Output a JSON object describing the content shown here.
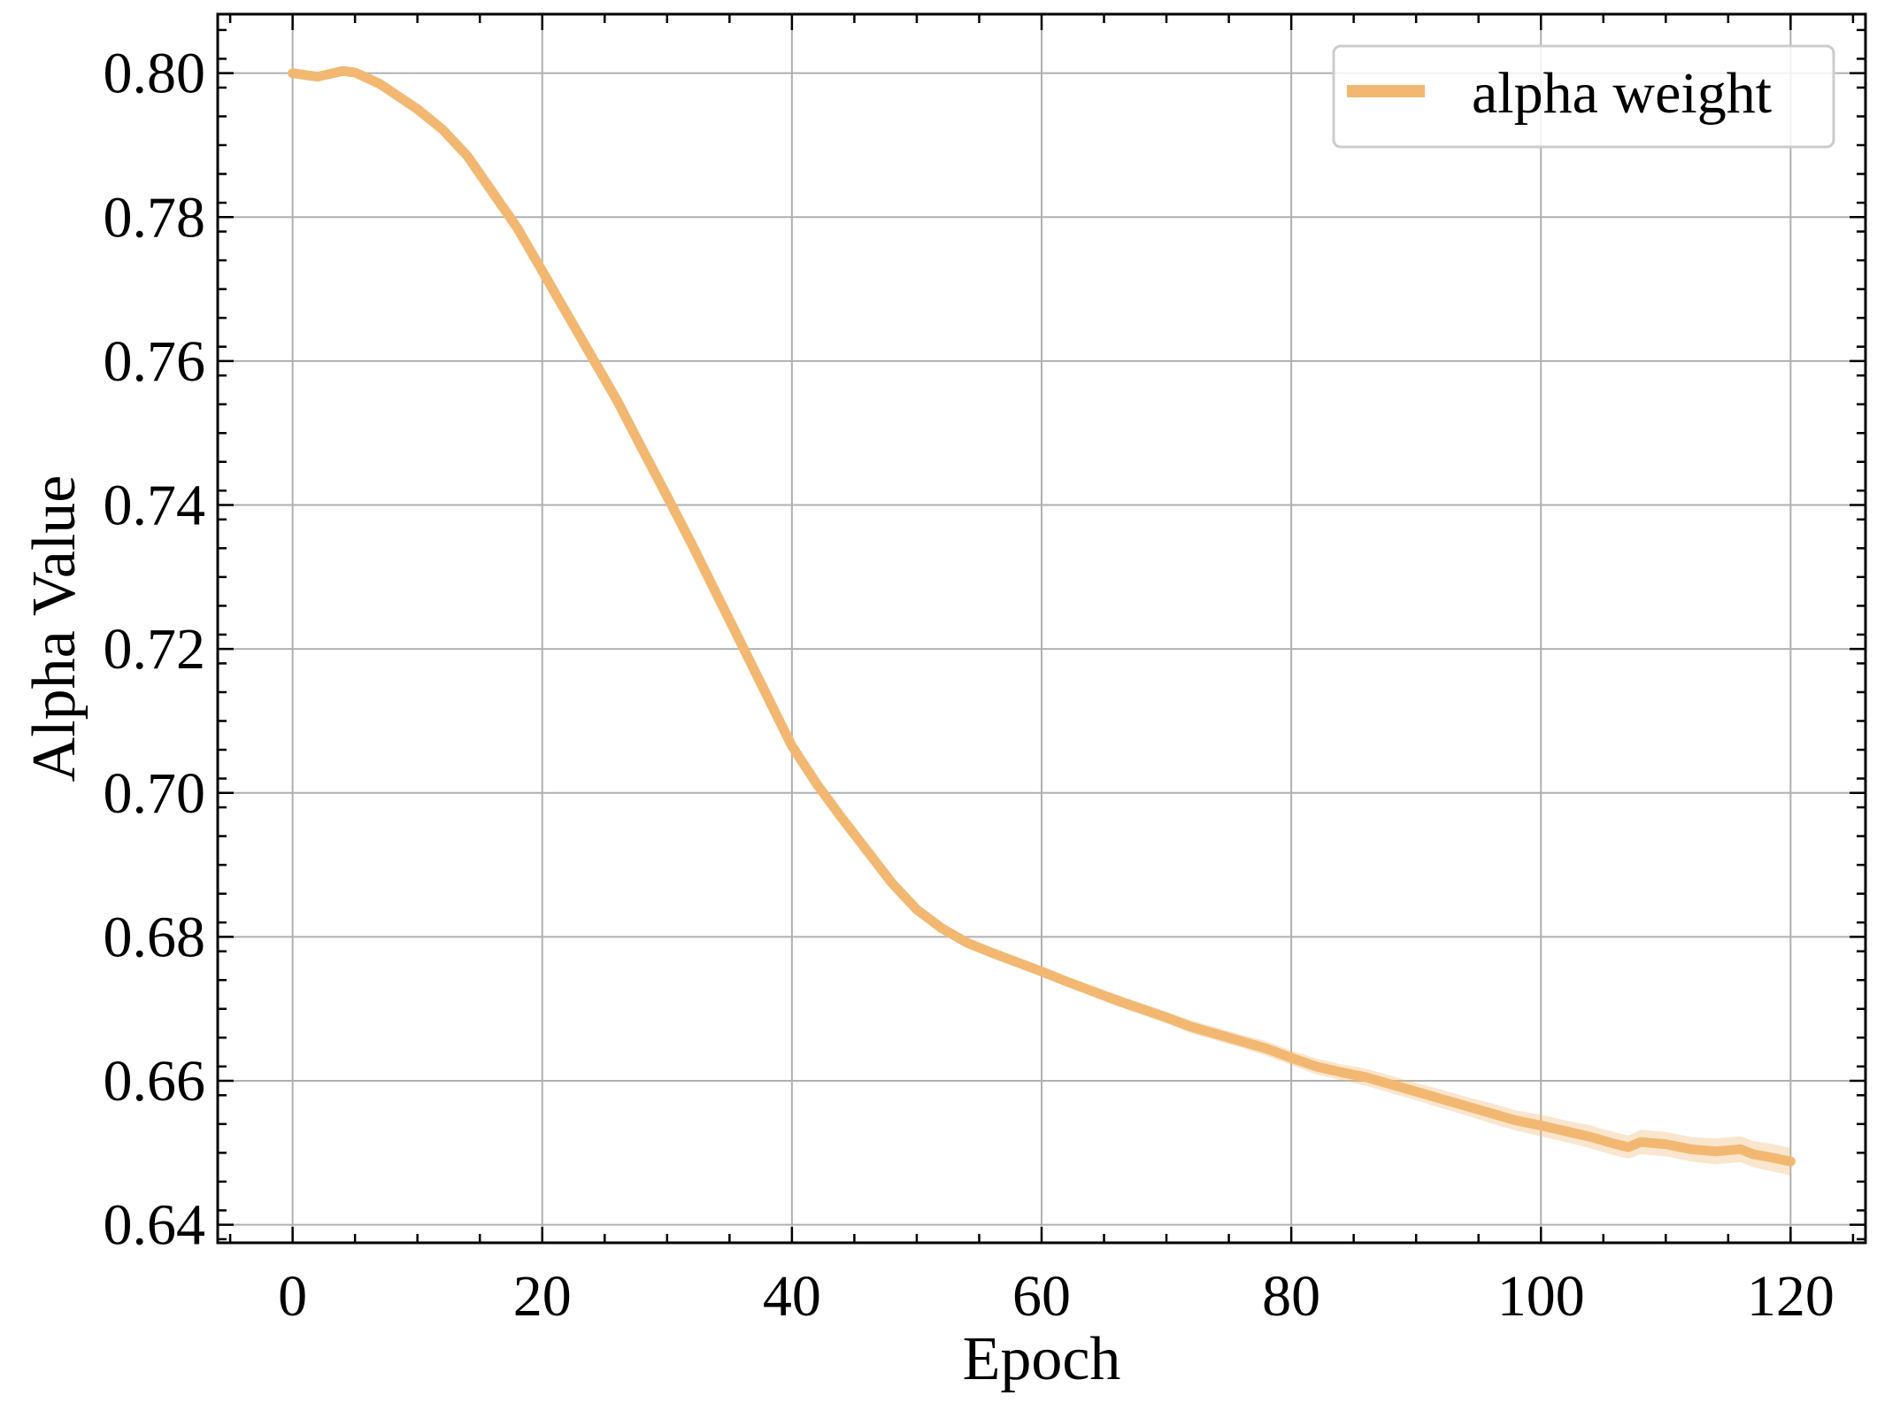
{
  "chart_data": {
    "type": "line",
    "xlabel": "Epoch",
    "ylabel": "Alpha Value",
    "xlim": [
      -6,
      126
    ],
    "ylim": [
      0.6375,
      0.8082
    ],
    "x_ticks": [
      0,
      20,
      40,
      60,
      80,
      100,
      120
    ],
    "y_ticks": [
      0.64,
      0.66,
      0.68,
      0.7,
      0.72,
      0.74,
      0.76,
      0.78,
      0.8
    ],
    "x_tick_labels": [
      "0",
      "20",
      "40",
      "60",
      "80",
      "100",
      "120"
    ],
    "y_tick_labels": [
      "0.64",
      "0.66",
      "0.68",
      "0.70",
      "0.72",
      "0.74",
      "0.76",
      "0.78",
      "0.80"
    ],
    "grid": true,
    "legend": {
      "position": "top-right"
    },
    "series": [
      {
        "name": "alpha weight",
        "color": "#f2b872",
        "band": true,
        "x": [
          0,
          2,
          4,
          5,
          7,
          10,
          12,
          14,
          16,
          18,
          20,
          22,
          24,
          26,
          28,
          30,
          32,
          34,
          36,
          38,
          40,
          42,
          44,
          46,
          48,
          50,
          52,
          54,
          56,
          58,
          60,
          62,
          64,
          66,
          68,
          70,
          72,
          74,
          76,
          78,
          80,
          82,
          84,
          86,
          88,
          90,
          92,
          94,
          96,
          98,
          100,
          102,
          104,
          106,
          107,
          108,
          110,
          112,
          114,
          116,
          117,
          118,
          120
        ],
        "y": [
          0.8,
          0.7995,
          0.8003,
          0.8001,
          0.7985,
          0.795,
          0.7922,
          0.7885,
          0.7835,
          0.7785,
          0.7725,
          0.7665,
          0.7605,
          0.7545,
          0.7478,
          0.7412,
          0.7345,
          0.7275,
          0.7205,
          0.7135,
          0.7065,
          0.7012,
          0.6965,
          0.692,
          0.6875,
          0.6838,
          0.6812,
          0.6792,
          0.6778,
          0.6765,
          0.6752,
          0.6738,
          0.6725,
          0.6712,
          0.67,
          0.6688,
          0.6675,
          0.6665,
          0.6655,
          0.6645,
          0.6632,
          0.662,
          0.6612,
          0.6605,
          0.6595,
          0.6585,
          0.6575,
          0.6565,
          0.6555,
          0.6545,
          0.6538,
          0.653,
          0.6522,
          0.6512,
          0.6508,
          0.6515,
          0.6512,
          0.6505,
          0.6502,
          0.6505,
          0.6498,
          0.6495,
          0.6488
        ],
        "band_halfwidth": [
          0.0001,
          0.0001,
          0.0001,
          0.0001,
          0.0001,
          0.0001,
          0.0001,
          0.0001,
          0.0001,
          0.0001,
          0.0001,
          0.0001,
          0.0001,
          0.0001,
          0.0001,
          0.0001,
          0.0001,
          0.0001,
          0.0001,
          0.0001,
          0.0002,
          0.0002,
          0.0003,
          0.0003,
          0.0004,
          0.0005,
          0.0005,
          0.0006,
          0.0006,
          0.0006,
          0.0007,
          0.0007,
          0.0007,
          0.0008,
          0.0008,
          0.0008,
          0.0009,
          0.0009,
          0.0009,
          0.001,
          0.001,
          0.0011,
          0.0011,
          0.0012,
          0.0012,
          0.0012,
          0.0013,
          0.0013,
          0.0014,
          0.0014,
          0.0015,
          0.0015,
          0.0016,
          0.0016,
          0.0016,
          0.0017,
          0.0017,
          0.0017,
          0.0018,
          0.0018,
          0.0018,
          0.0019,
          0.0019
        ]
      }
    ]
  }
}
